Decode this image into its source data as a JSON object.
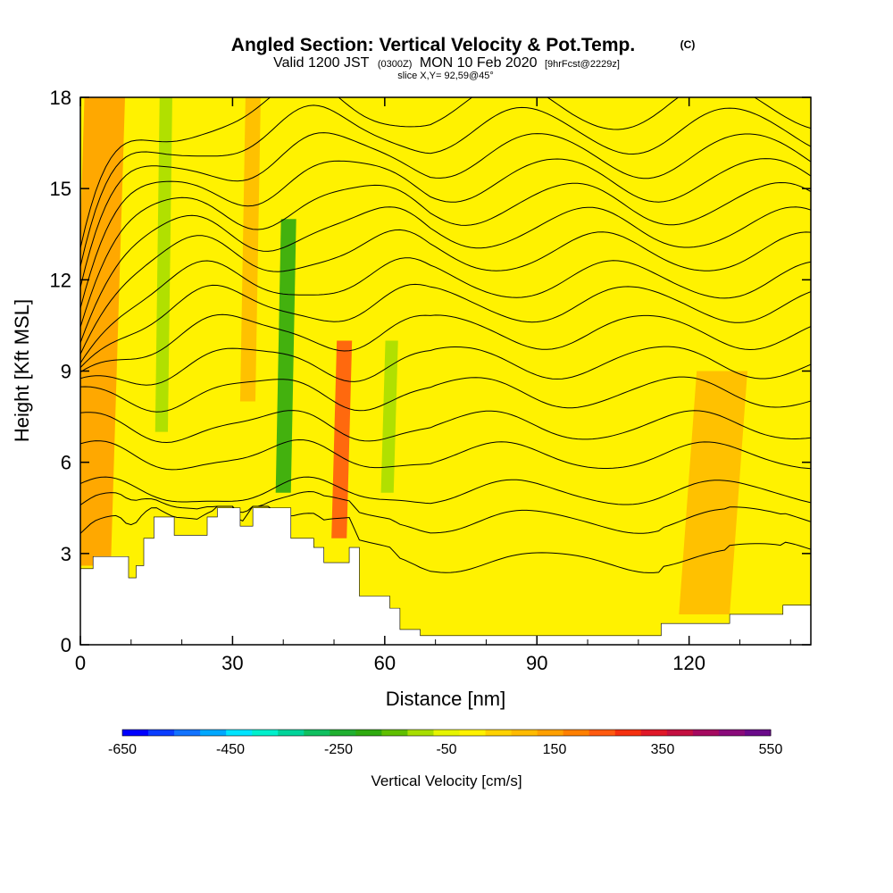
{
  "header": {
    "title": "Angled Section: Vertical Velocity & Pot.Temp.",
    "title_mark": "(C)",
    "valid_prefix": "Valid 1200 JST",
    "valid_utc": "(0300Z)",
    "valid_date": "MON 10 Feb 2020",
    "forecast": "[9hrFcst@2229z]",
    "slice": "slice X,Y= 92,59@45°"
  },
  "chart_data": {
    "type": "heatmap",
    "xlabel": "Distance [nm]",
    "ylabel": "Height [Kft MSL]",
    "xlim": [
      0,
      144
    ],
    "ylim": [
      0,
      18
    ],
    "x_ticks": [
      0,
      30,
      60,
      90,
      120
    ],
    "y_ticks": [
      0,
      3,
      6,
      9,
      12,
      15,
      18
    ],
    "background_velocity_cm_s": 0,
    "velocity_bands": [
      {
        "x_center": 2,
        "x_width": 8,
        "y_top": 18,
        "y_bottom": 2.6,
        "value": 150
      },
      {
        "x_center": 16,
        "x_width": 2.5,
        "y_top": 18,
        "y_bottom": 7,
        "value": -120
      },
      {
        "x_center": 40,
        "x_width": 3,
        "y_top": 14,
        "y_bottom": 5,
        "value": -200
      },
      {
        "x_center": 51,
        "x_width": 3,
        "y_top": 10,
        "y_bottom": 3.5,
        "value": 220
      },
      {
        "x_center": 60.5,
        "x_width": 2.5,
        "y_top": 10,
        "y_bottom": 5,
        "value": -120
      },
      {
        "x_center": 33,
        "x_width": 3,
        "y_top": 18,
        "y_bottom": 8,
        "value": 90
      },
      {
        "x_center": 123,
        "x_width": 10,
        "y_top": 9,
        "y_bottom": 1,
        "value": 80
      }
    ],
    "terrain_kft": [
      [
        0,
        2.5
      ],
      [
        2.5,
        2.9
      ],
      [
        7.5,
        2.9
      ],
      [
        9.5,
        2.2
      ],
      [
        11,
        2.6
      ],
      [
        12.5,
        3.5
      ],
      [
        14.5,
        4.2
      ],
      [
        18.5,
        3.6
      ],
      [
        23,
        3.6
      ],
      [
        25,
        4.2
      ],
      [
        27,
        4.5
      ],
      [
        30,
        4.5
      ],
      [
        31.5,
        3.9
      ],
      [
        34,
        4.5
      ],
      [
        37.5,
        4.5
      ],
      [
        41.5,
        3.5
      ],
      [
        46,
        3.2
      ],
      [
        48,
        2.7
      ],
      [
        53,
        3.2
      ],
      [
        55,
        1.6
      ],
      [
        61,
        1.2
      ],
      [
        63,
        0.5
      ],
      [
        67,
        0.3
      ],
      [
        88,
        0.3
      ],
      [
        100,
        0.3
      ],
      [
        114,
        0.3
      ],
      [
        114.5,
        0.7
      ],
      [
        127,
        0.7
      ],
      [
        128,
        1.0
      ],
      [
        138,
        1.0
      ],
      [
        138.5,
        1.3
      ],
      [
        144,
        1.3
      ]
    ],
    "isentropes": [
      {
        "base_kft": 2.6
      },
      {
        "base_kft": 4.0
      },
      {
        "base_kft": 5.0
      },
      {
        "base_kft": 6.2
      },
      {
        "base_kft": 7.2
      },
      {
        "base_kft": 8.3
      },
      {
        "base_kft": 9.3
      },
      {
        "base_kft": 10.3
      },
      {
        "base_kft": 11.2
      },
      {
        "base_kft": 12.0
      },
      {
        "base_kft": 12.9
      },
      {
        "base_kft": 13.7
      },
      {
        "base_kft": 14.5
      },
      {
        "base_kft": 15.3
      },
      {
        "base_kft": 16.1
      },
      {
        "base_kft": 16.9
      },
      {
        "base_kft": 17.7
      }
    ],
    "colorbar": {
      "label": "Vertical Velocity [cm/s]",
      "tick_labels": [
        "-650",
        "-450",
        "-250",
        "-50",
        "150",
        "350",
        "550"
      ],
      "colors": [
        "#0000ff",
        "#0a3dff",
        "#1273ff",
        "#00a8ff",
        "#00e4ff",
        "#00f0cc",
        "#00d49a",
        "#10c060",
        "#20b030",
        "#2faa10",
        "#60bf00",
        "#a8de00",
        "#e6f500",
        "#fff200",
        "#ffd200",
        "#ffbb00",
        "#ffa000",
        "#ff8000",
        "#ff5a10",
        "#f53010",
        "#e01828",
        "#c41040",
        "#a50a60",
        "#8a0a7a",
        "#6a0a8a"
      ]
    }
  }
}
